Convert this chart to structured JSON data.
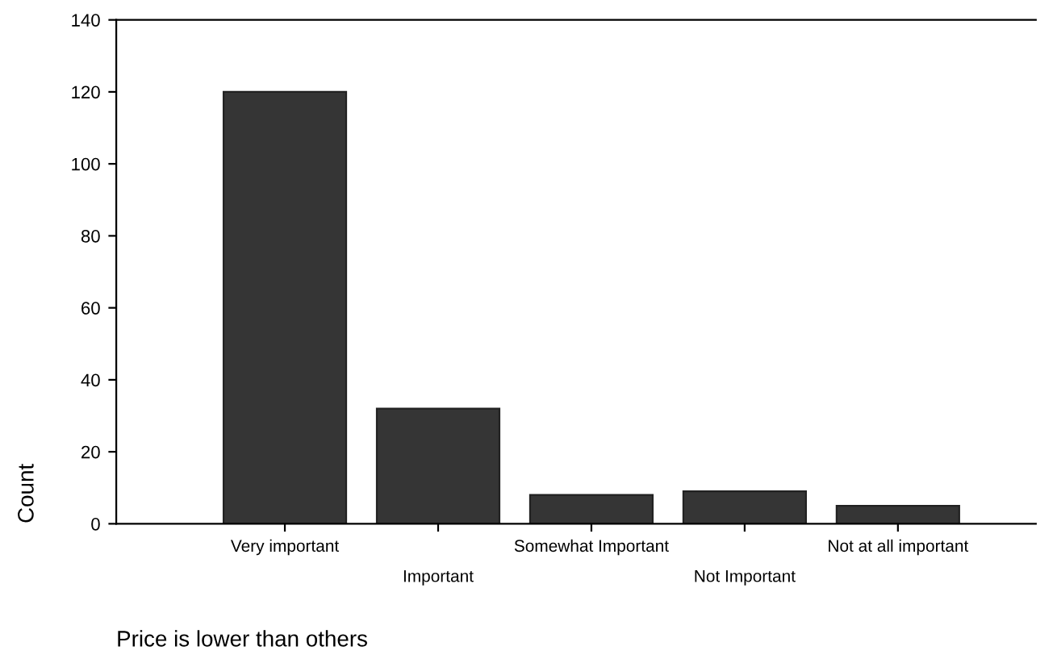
{
  "chart_data": {
    "type": "bar",
    "xlabel": "Price is lower than others",
    "ylabel": "Count",
    "categories": [
      "Very important",
      "Important",
      "Somewhat Important",
      "Not Important",
      "Not at all important"
    ],
    "values": [
      120,
      32,
      8,
      9,
      5
    ],
    "color": "#353535",
    "ylim": [
      0,
      140
    ],
    "yticks": [
      0,
      20,
      40,
      60,
      80,
      100,
      120,
      140
    ],
    "grid": false
  }
}
